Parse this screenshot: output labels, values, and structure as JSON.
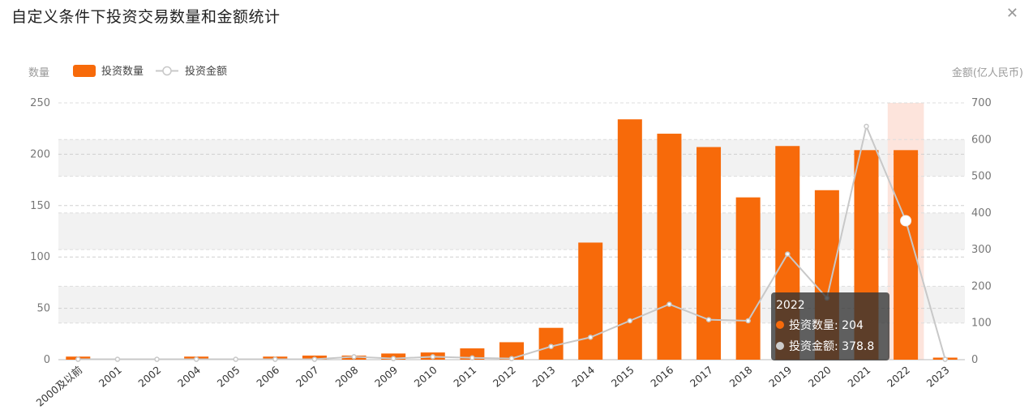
{
  "title": "自定义条件下投资交易数量和金额统计",
  "close_icon": "close-icon",
  "colors": {
    "bar": "#f76a0a",
    "line": "#c8c8c8",
    "highlight": "#fde4dc",
    "band": "#f2f2f2"
  },
  "chart_data": {
    "type": "bar",
    "title": "自定义条件下投资交易数量和金额统计",
    "categories": [
      "2000及以前",
      "2001",
      "2002",
      "2004",
      "2005",
      "2006",
      "2007",
      "2008",
      "2009",
      "2010",
      "2011",
      "2012",
      "2013",
      "2014",
      "2015",
      "2016",
      "2017",
      "2018",
      "2019",
      "2020",
      "2021",
      "2022",
      "2023"
    ],
    "ylabel_left": "数量",
    "ylabel_right": "金额(亿人民币)",
    "ylim_left": [
      0,
      250
    ],
    "ylim_right": [
      0,
      700
    ],
    "yticks_left": [
      "0",
      "50",
      "100",
      "150",
      "200",
      "250"
    ],
    "yticks_right": [
      "0",
      "100",
      "200",
      "300",
      "400",
      "500",
      "600",
      "700"
    ],
    "legend_position": "top-left",
    "grid": true,
    "series": [
      {
        "name": "投资数量",
        "type": "bar",
        "axis": "left",
        "values": [
          3,
          1,
          1,
          3,
          1,
          3,
          4,
          4,
          6,
          7,
          11,
          17,
          31,
          114,
          234,
          220,
          207,
          158,
          208,
          165,
          204,
          204,
          2
        ]
      },
      {
        "name": "投资金额",
        "type": "line",
        "axis": "right",
        "values": [
          1,
          1,
          1,
          1,
          1,
          1,
          1,
          8,
          3,
          8,
          5,
          3,
          36,
          61,
          106,
          151,
          109,
          106,
          288,
          168,
          636,
          378.8,
          1
        ]
      }
    ],
    "highlighted_category": "2022",
    "tooltip": {
      "year": "2022",
      "count_label": "投资数量: 204",
      "amount_label": "投资金额: 378.8"
    }
  }
}
